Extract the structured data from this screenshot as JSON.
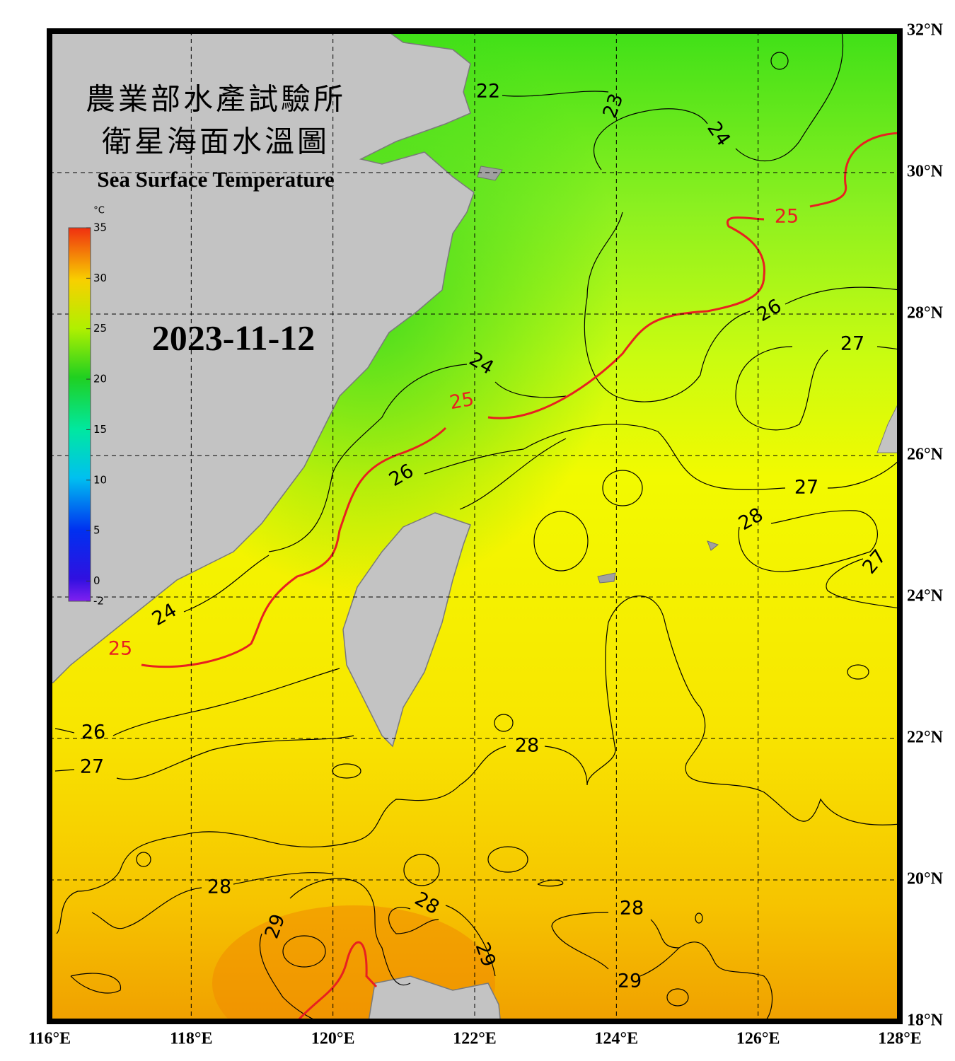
{
  "header": {
    "title_lines": [
      "農業部水產試驗所",
      "衛星海面水溫圖"
    ],
    "subtitle": "Sea Surface Temperature",
    "date": "2023-11-12"
  },
  "colorbar": {
    "unit": "°C",
    "range": [
      -2,
      35
    ],
    "ticks": [
      35,
      30,
      25,
      20,
      15,
      10,
      5,
      0,
      -2
    ]
  },
  "map": {
    "lon_range": [
      116,
      128
    ],
    "lat_range": [
      18,
      32
    ],
    "lon_ticks": [
      {
        "value": 116,
        "label": "116°E"
      },
      {
        "value": 118,
        "label": "118°E"
      },
      {
        "value": 120,
        "label": "120°E"
      },
      {
        "value": 122,
        "label": "122°E"
      },
      {
        "value": 124,
        "label": "124°E"
      },
      {
        "value": 126,
        "label": "126°E"
      },
      {
        "value": 128,
        "label": "128°E"
      }
    ],
    "lat_ticks": [
      {
        "value": 18,
        "label": "18°N"
      },
      {
        "value": 20,
        "label": "20°N"
      },
      {
        "value": 22,
        "label": "22°N"
      },
      {
        "value": 24,
        "label": "24°N"
      },
      {
        "value": 26,
        "label": "26°N"
      },
      {
        "value": 28,
        "label": "28°N"
      },
      {
        "value": 30,
        "label": "30°N"
      },
      {
        "value": 32,
        "label": "32°N"
      }
    ],
    "grid": true,
    "contour_labels": [
      {
        "value": 22,
        "color": "#000000"
      },
      {
        "value": 23,
        "color": "#000000"
      },
      {
        "value": 24,
        "color": "#000000"
      },
      {
        "value": 25,
        "color": "#e82020"
      },
      {
        "value": 26,
        "color": "#000000"
      },
      {
        "value": 27,
        "color": "#000000"
      },
      {
        "value": 24,
        "color": "#000000"
      },
      {
        "value": 25,
        "color": "#e82020"
      },
      {
        "value": 26,
        "color": "#000000"
      },
      {
        "value": 27,
        "color": "#000000"
      },
      {
        "value": 28,
        "color": "#000000"
      },
      {
        "value": 27,
        "color": "#000000"
      },
      {
        "value": 24,
        "color": "#000000"
      },
      {
        "value": 25,
        "color": "#e82020"
      },
      {
        "value": 26,
        "color": "#000000"
      },
      {
        "value": 27,
        "color": "#000000"
      },
      {
        "value": 28,
        "color": "#000000"
      },
      {
        "value": 28,
        "color": "#000000"
      },
      {
        "value": 29,
        "color": "#000000"
      },
      {
        "value": 28,
        "color": "#000000"
      },
      {
        "value": 28,
        "color": "#000000"
      },
      {
        "value": 29,
        "color": "#000000"
      },
      {
        "value": 29,
        "color": "#000000"
      }
    ]
  }
}
